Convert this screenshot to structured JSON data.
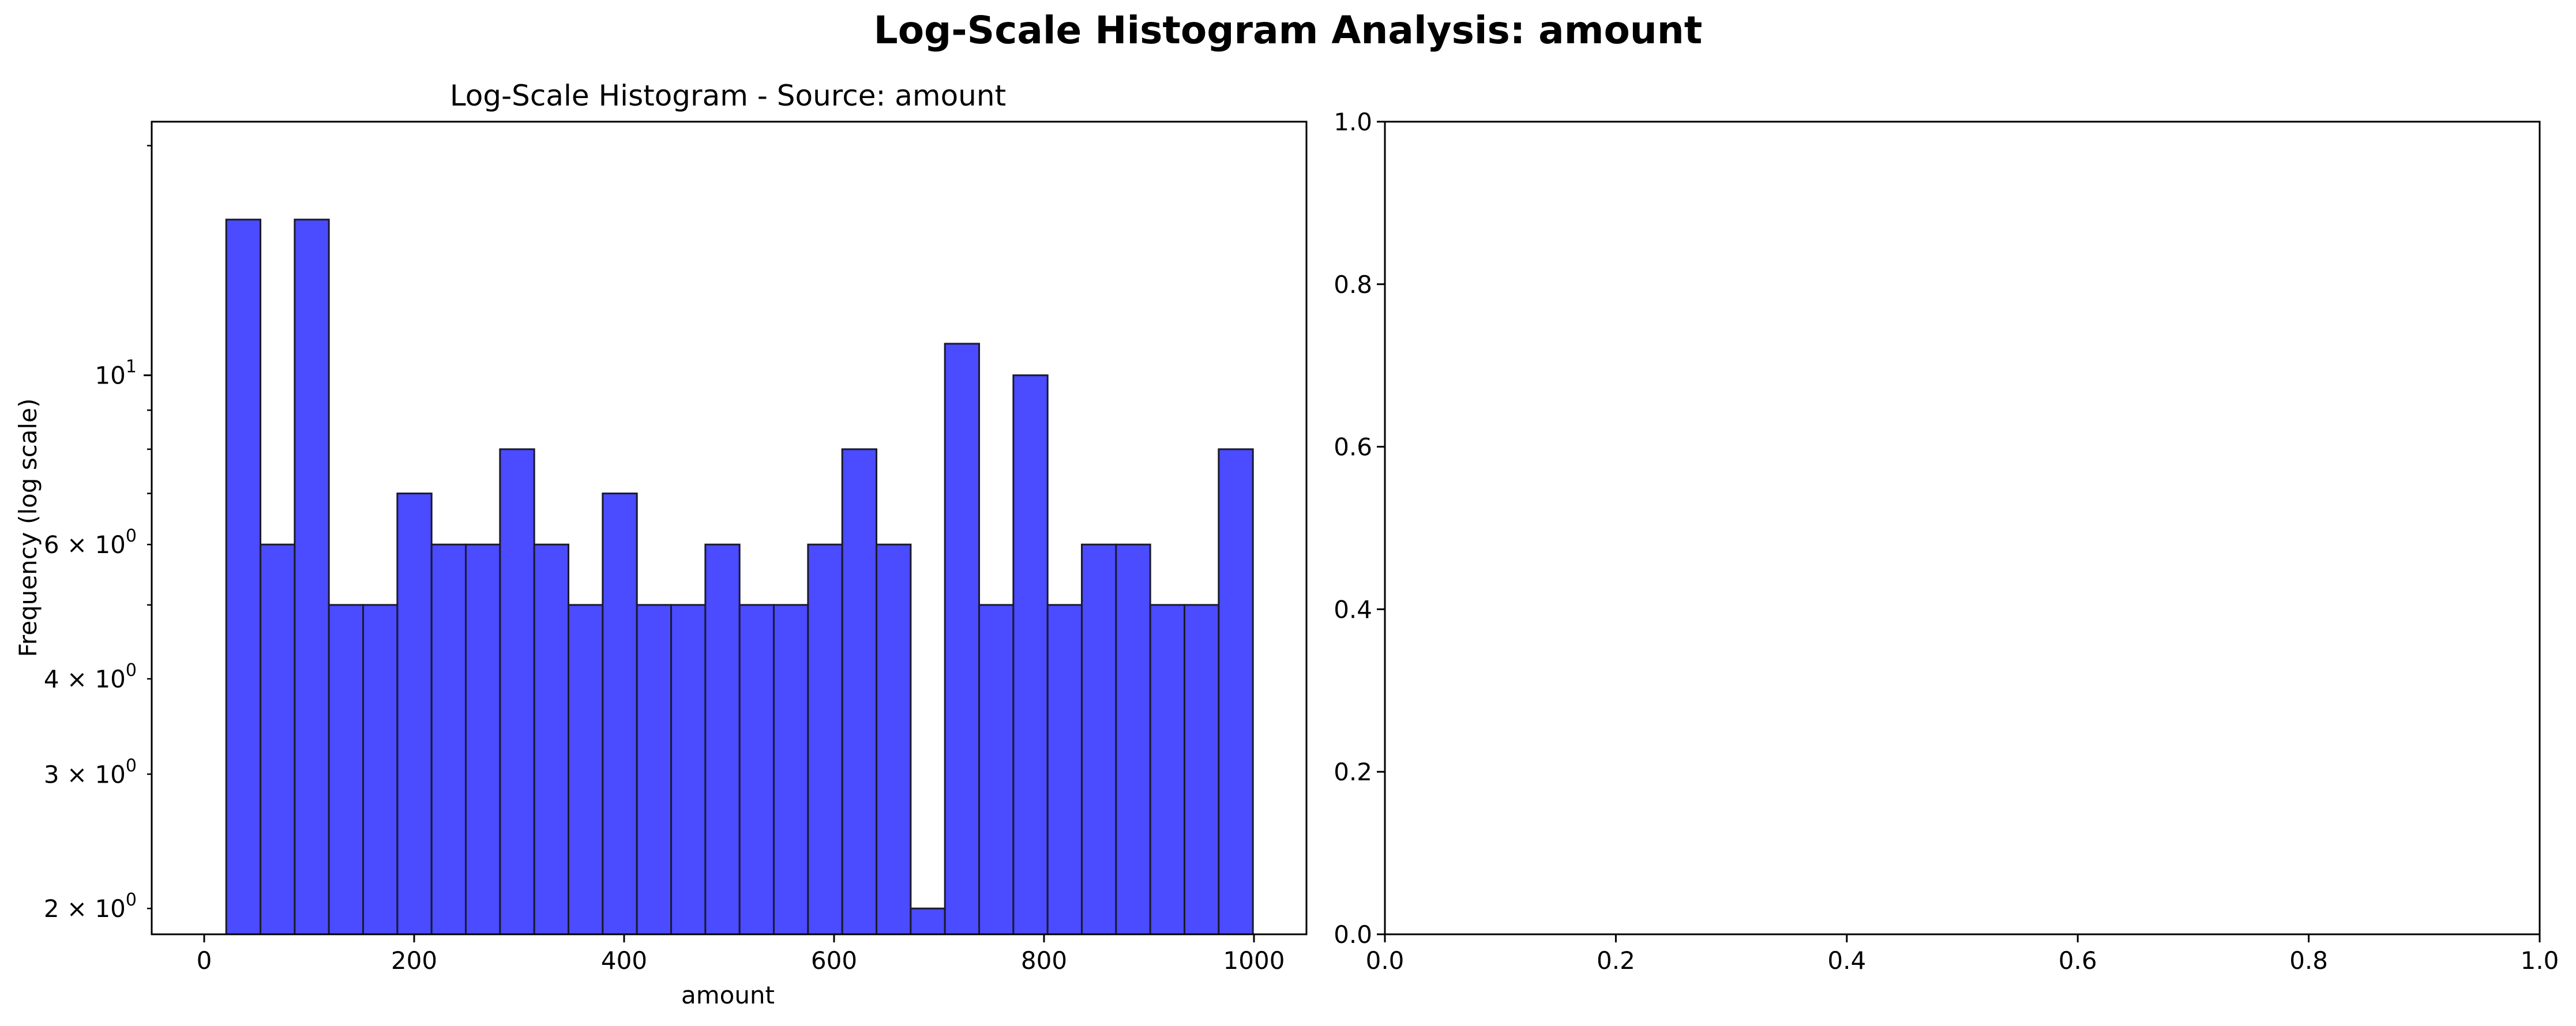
{
  "figure": {
    "suptitle": "Log-Scale Histogram Analysis: amount"
  },
  "chart_data": [
    {
      "type": "bar",
      "subtype": "histogram",
      "title": "Log-Scale Histogram - Source: amount",
      "xlabel": "amount",
      "ylabel": "Frequency (log scale)",
      "yscale": "log",
      "xlim": [
        -50,
        1050
      ],
      "ylim": [
        1.85,
        21.5
      ],
      "grid": false,
      "legend": "none",
      "bar_color": "#4b4bff",
      "edge_color": "#1a1a2e",
      "bin_start": 21,
      "bin_width": 32.6,
      "values": [
        16,
        6,
        16,
        5,
        5,
        7,
        6,
        6,
        8,
        6,
        5,
        7,
        5,
        5,
        6,
        5,
        5,
        6,
        8,
        6,
        2,
        11,
        5,
        10,
        5,
        6,
        6,
        5,
        5,
        8
      ],
      "xticks": [
        {
          "value": 0,
          "label": "0"
        },
        {
          "value": 200,
          "label": "200"
        },
        {
          "value": 400,
          "label": "400"
        },
        {
          "value": 600,
          "label": "600"
        },
        {
          "value": 800,
          "label": "800"
        },
        {
          "value": 1000,
          "label": "1000"
        }
      ],
      "yticks_major": [
        {
          "value": 10,
          "label": "10",
          "exponent": "1"
        }
      ],
      "yticks_minor_labeled": [
        {
          "value": 2,
          "coef": "2",
          "exponent": "0"
        },
        {
          "value": 3,
          "coef": "3",
          "exponent": "0"
        },
        {
          "value": 4,
          "coef": "4",
          "exponent": "0"
        },
        {
          "value": 6,
          "coef": "6",
          "exponent": "0"
        }
      ],
      "yticks_minor_unlabeled": [
        5,
        7,
        8,
        9,
        20
      ]
    },
    {
      "type": "empty",
      "xlim": [
        0,
        1
      ],
      "ylim": [
        0,
        1
      ],
      "xticks": [
        "0.0",
        "0.2",
        "0.4",
        "0.6",
        "0.8",
        "1.0"
      ],
      "yticks": [
        "0.0",
        "0.2",
        "0.4",
        "0.6",
        "0.8",
        "1.0"
      ]
    }
  ]
}
